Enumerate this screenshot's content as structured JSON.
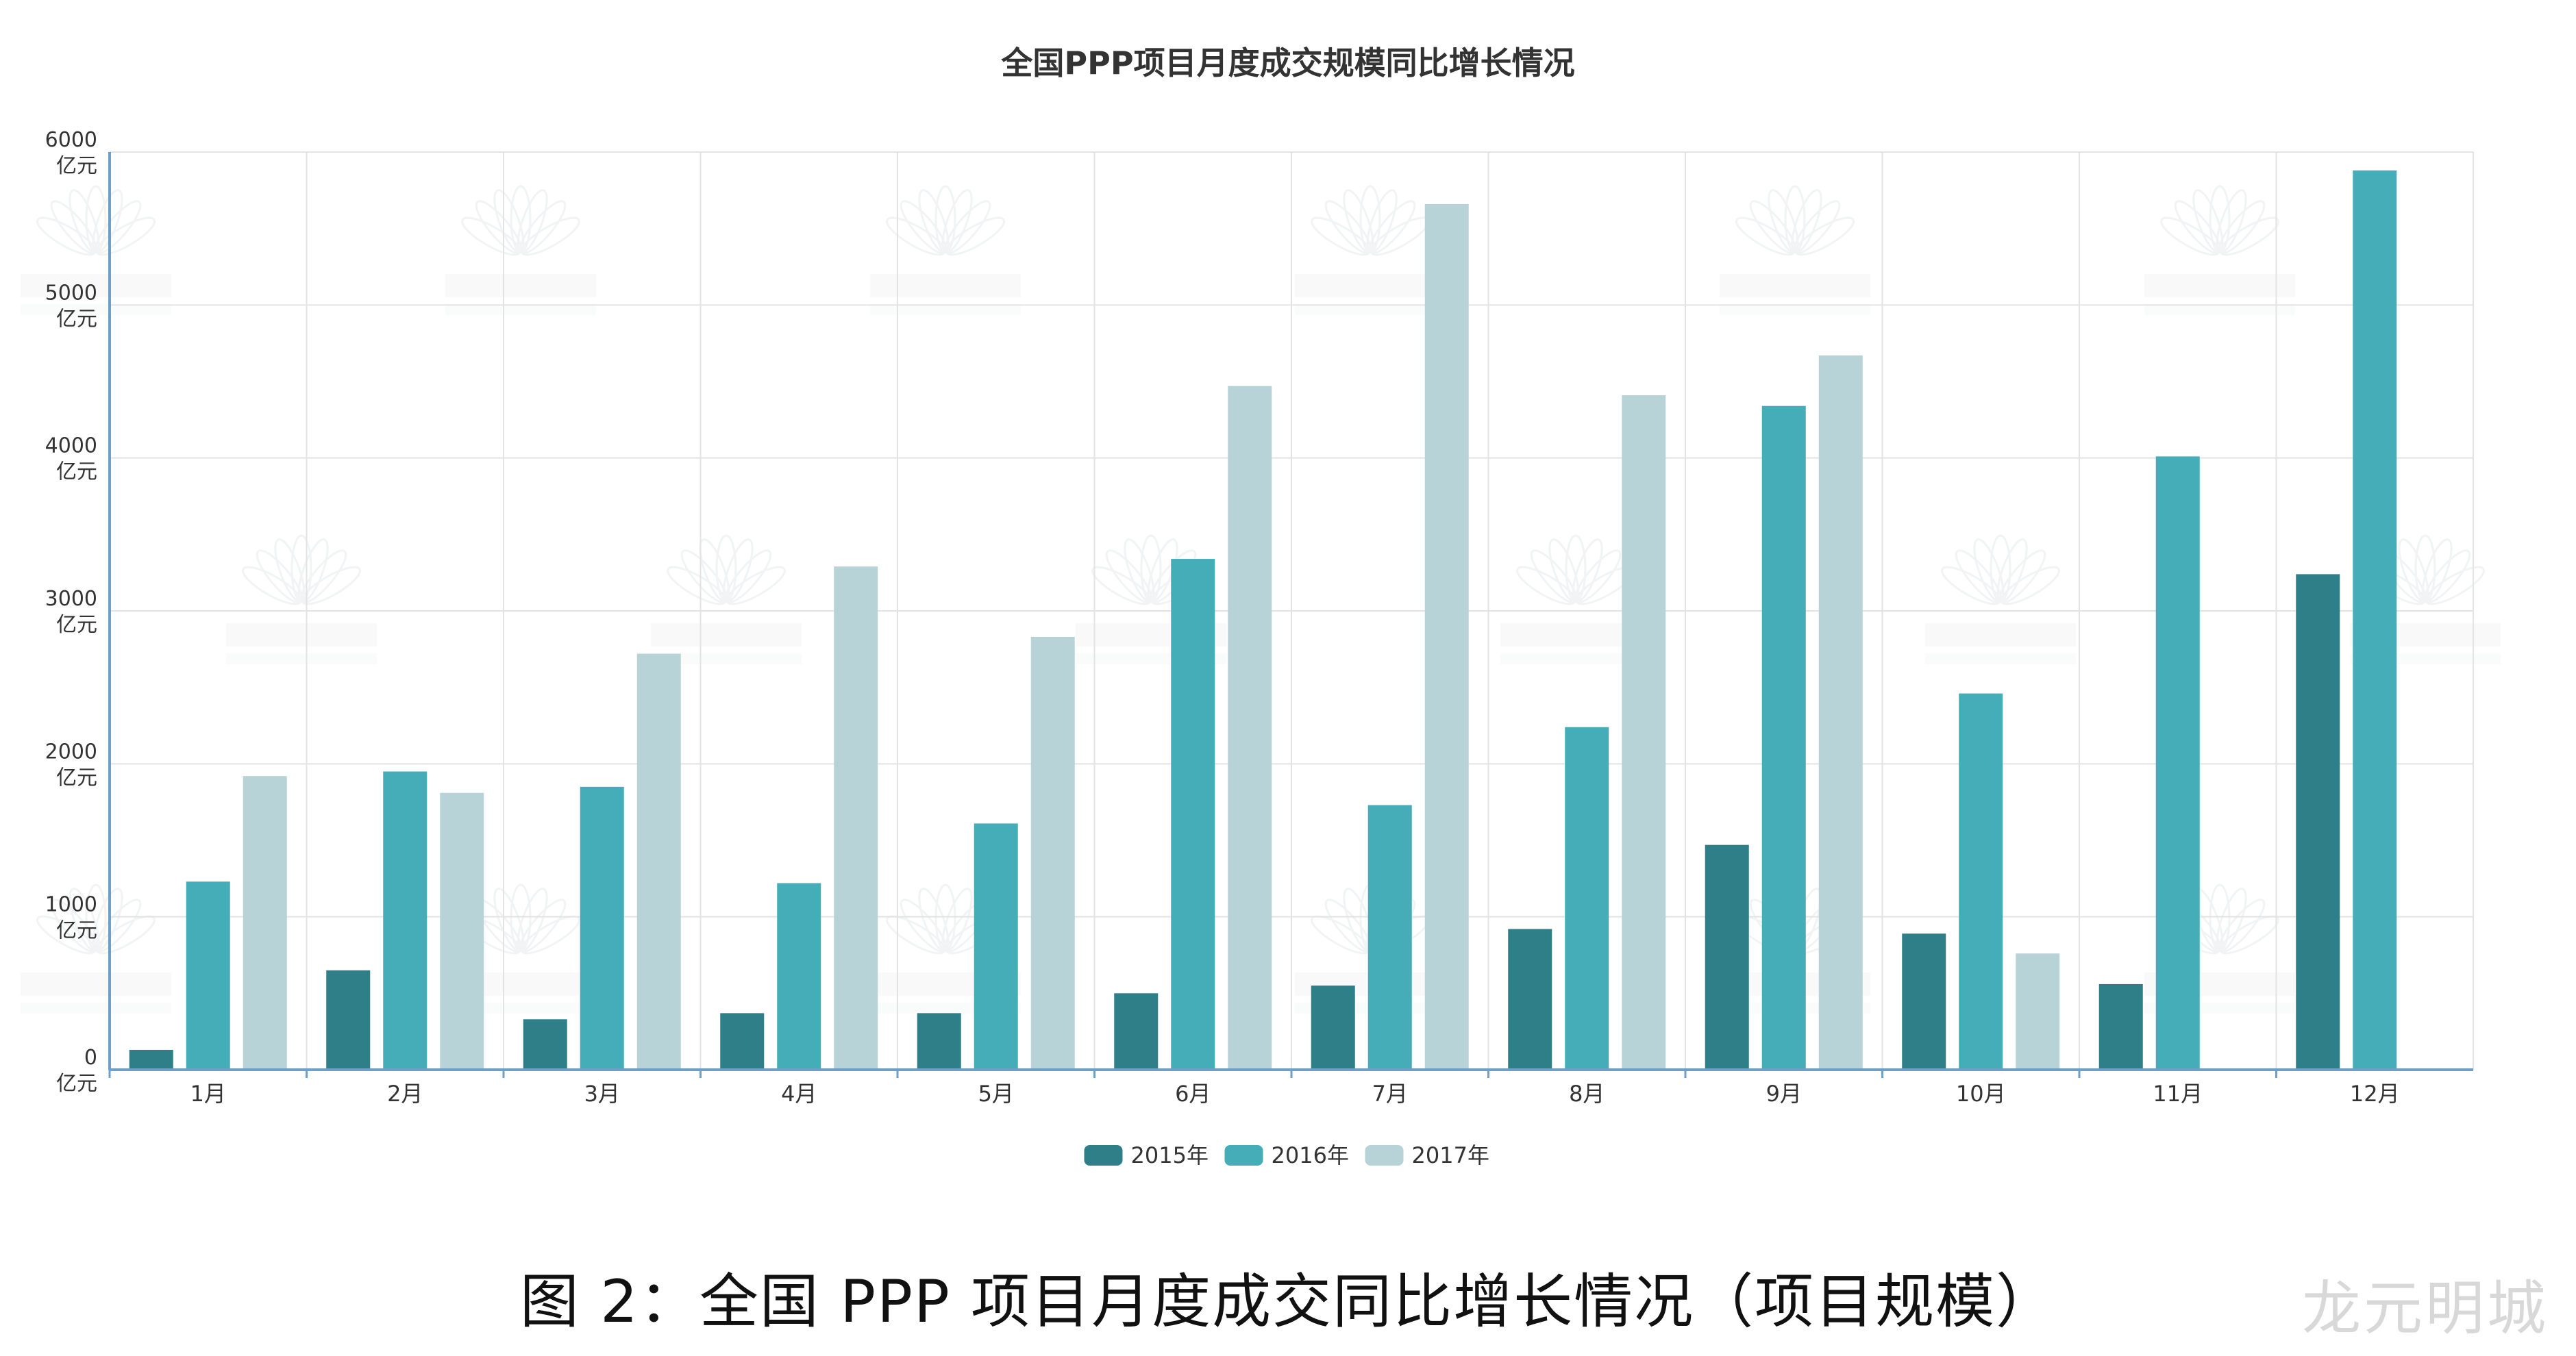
{
  "caption": "图 2：全国 PPP 项目月度成交同比增长情况（项目规模）",
  "corner_watermark": "龙元明城",
  "chart_data": {
    "type": "bar",
    "title": "全国PPP项目月度成交规模同比增长情况",
    "categories": [
      "1月",
      "2月",
      "3月",
      "4月",
      "5月",
      "6月",
      "7月",
      "8月",
      "9月",
      "10月",
      "11月",
      "12月"
    ],
    "series": [
      {
        "name": "2015年",
        "color": "#2f7f89",
        "values": [
          130,
          650,
          330,
          370,
          370,
          500,
          550,
          920,
          1470,
          890,
          560,
          3240
        ]
      },
      {
        "name": "2016年",
        "color": "#45adb8",
        "values": [
          1230,
          1950,
          1850,
          1220,
          1610,
          3340,
          1730,
          2240,
          4340,
          2460,
          4010,
          5880
        ]
      },
      {
        "name": "2017年",
        "color": "#b7d3d7",
        "values": [
          1920,
          1810,
          2720,
          3290,
          2830,
          4470,
          5660,
          4410,
          4670,
          760,
          null,
          null
        ]
      }
    ],
    "yticks": [
      "0",
      "1000",
      "2000",
      "3000",
      "4000",
      "5000",
      "6000"
    ],
    "yunit": "亿元",
    "ylim": [
      0,
      6000
    ],
    "grid": true,
    "legend_position": "bottom"
  }
}
